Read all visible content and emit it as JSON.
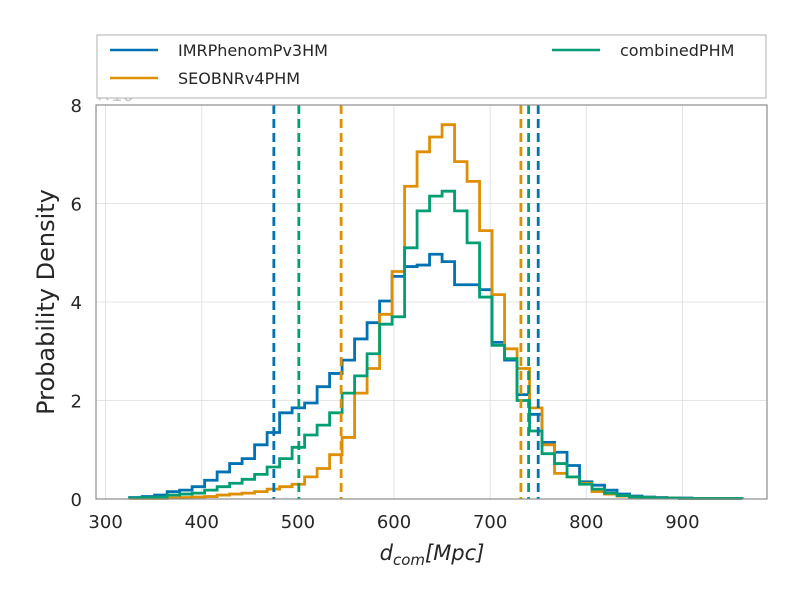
{
  "chart_data": {
    "type": "step-histogram",
    "xlabel": "d_{com}[Mpc]",
    "ylabel": "Probability Density",
    "y_multiplier_label": "×10⁻³",
    "xlim": [
      290,
      988
    ],
    "ylim": [
      0,
      8
    ],
    "x_ticks": [
      300,
      400,
      500,
      600,
      700,
      800,
      900
    ],
    "y_ticks": [
      0,
      2,
      4,
      6,
      8
    ],
    "grid": true,
    "legend_placement": "above-plot",
    "bin_edges": [
      325,
      338,
      351,
      364,
      377,
      390,
      403,
      416,
      429,
      442,
      455,
      468,
      481,
      494,
      507,
      520,
      533,
      546,
      559,
      572,
      585,
      598,
      611,
      624,
      637,
      650,
      663,
      676,
      689,
      702,
      715,
      728,
      741,
      754,
      767,
      780,
      793,
      806,
      819,
      832,
      845,
      858,
      871,
      884,
      897,
      910,
      923,
      936,
      949,
      962
    ],
    "series": [
      {
        "name": "IMRPhenomPv3HM",
        "color": "#0072b2",
        "values": [
          0.03,
          0.05,
          0.08,
          0.15,
          0.18,
          0.25,
          0.38,
          0.55,
          0.72,
          0.82,
          1.1,
          1.35,
          1.75,
          1.85,
          1.95,
          2.28,
          2.55,
          2.82,
          3.25,
          3.58,
          4.02,
          4.52,
          4.72,
          4.75,
          4.97,
          4.82,
          4.35,
          4.35,
          4.25,
          3.18,
          2.82,
          2.12,
          1.72,
          1.15,
          0.95,
          0.68,
          0.35,
          0.28,
          0.18,
          0.1,
          0.06,
          0.04,
          0.03,
          0.02,
          0.02,
          0.01,
          0.01,
          0.01,
          0.01
        ],
        "ci": [
          475,
          750
        ]
      },
      {
        "name": "SEOBNRv4PHM",
        "color": "#de8f05",
        "values": [
          0.01,
          0.01,
          0.01,
          0.02,
          0.03,
          0.04,
          0.05,
          0.08,
          0.1,
          0.12,
          0.15,
          0.2,
          0.25,
          0.3,
          0.45,
          0.62,
          0.9,
          1.25,
          2.15,
          2.65,
          3.75,
          4.62,
          6.35,
          7.05,
          7.35,
          7.6,
          6.85,
          6.45,
          5.45,
          4.15,
          3.05,
          2.65,
          1.85,
          1.1,
          0.52,
          0.45,
          0.32,
          0.15,
          0.1,
          0.06,
          0.04,
          0.03,
          0.02,
          0.02,
          0.01,
          0.01,
          0.01,
          0.01,
          0.01
        ],
        "ci": [
          545,
          732
        ]
      },
      {
        "name": "combinedPHM",
        "color": "#029e73",
        "values": [
          0.02,
          0.03,
          0.04,
          0.08,
          0.1,
          0.12,
          0.18,
          0.25,
          0.32,
          0.4,
          0.5,
          0.65,
          0.82,
          1.05,
          1.3,
          1.5,
          1.75,
          2.15,
          2.5,
          2.95,
          3.55,
          3.7,
          5.1,
          5.85,
          6.15,
          6.25,
          5.85,
          5.2,
          4.1,
          3.12,
          2.85,
          2.0,
          1.38,
          0.92,
          0.72,
          0.45,
          0.3,
          0.2,
          0.12,
          0.07,
          0.04,
          0.03,
          0.02,
          0.02,
          0.01,
          0.01,
          0.01,
          0.01,
          0.01
        ],
        "ci": [
          501,
          740
        ]
      }
    ]
  }
}
